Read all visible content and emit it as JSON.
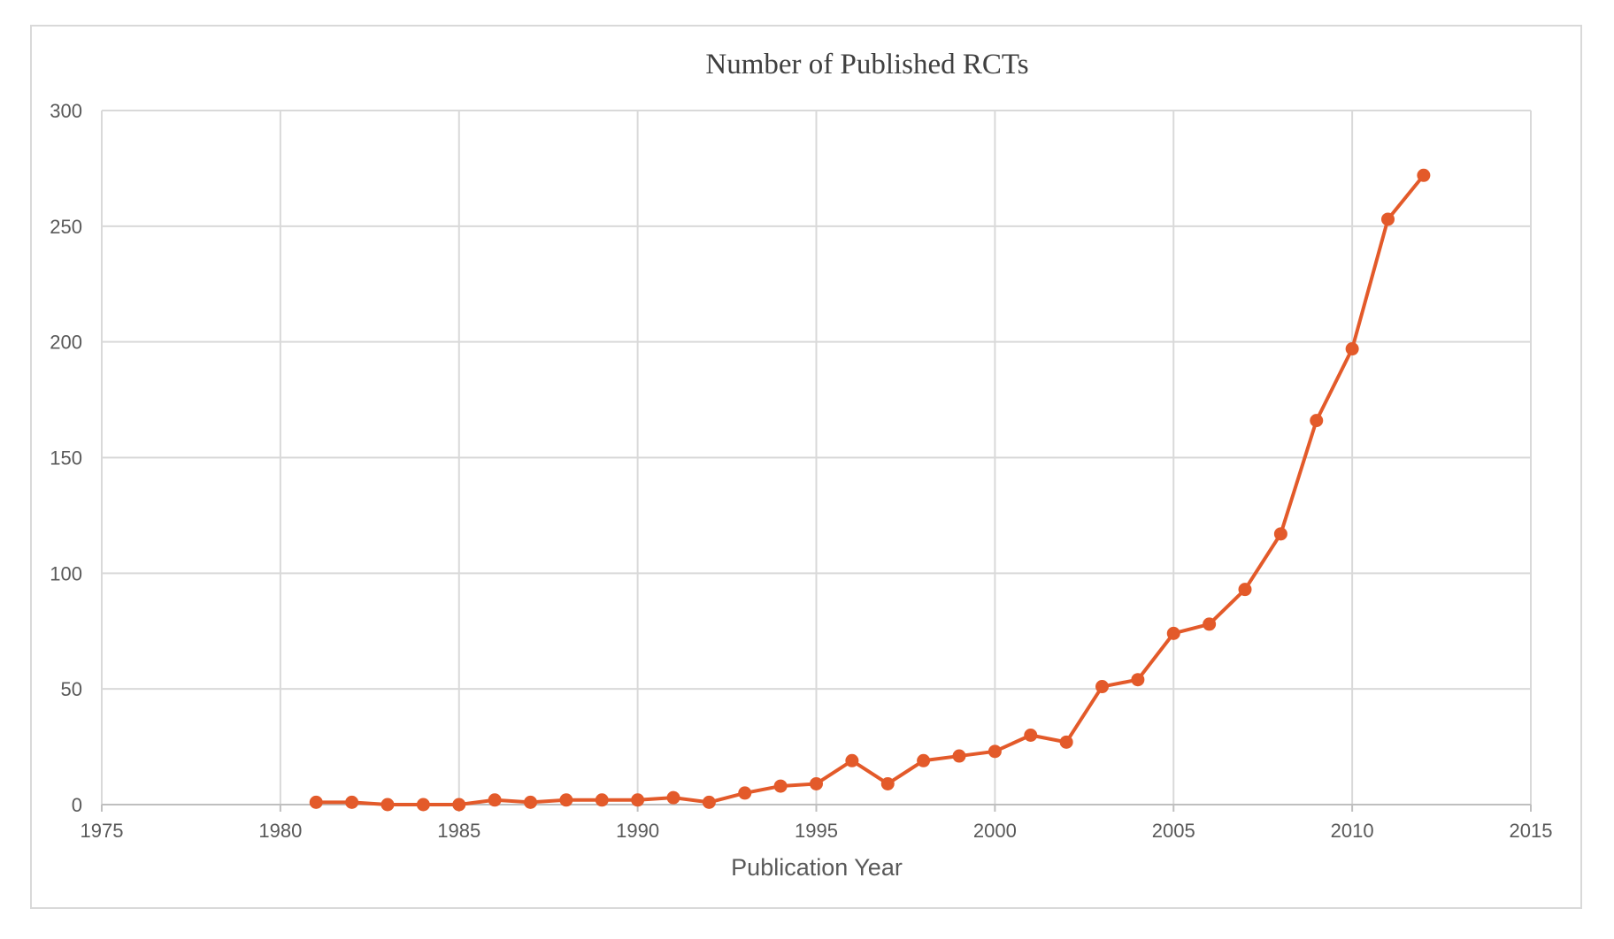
{
  "chart_data": {
    "type": "line",
    "title": "Number of Published RCTs",
    "xlabel": "Publication Year",
    "ylabel": "",
    "xlim": [
      1975,
      2015
    ],
    "ylim": [
      0,
      300
    ],
    "x_ticks": [
      1975,
      1980,
      1985,
      1990,
      1995,
      2000,
      2005,
      2010,
      2015
    ],
    "y_ticks": [
      0,
      50,
      100,
      150,
      200,
      250,
      300
    ],
    "grid": true,
    "legend": "none",
    "color": "#E35A2A",
    "series": [
      {
        "x": [
          1981,
          1982,
          1983,
          1984,
          1985,
          1986,
          1987,
          1988,
          1989,
          1990,
          1991,
          1992,
          1993,
          1994,
          1995,
          1996,
          1997,
          1998,
          1999,
          2000,
          2001,
          2002,
          2003,
          2004,
          2005,
          2006,
          2007,
          2008,
          2009,
          2010,
          2011,
          2012
        ],
        "y": [
          1,
          1,
          0,
          0,
          0,
          2,
          1,
          2,
          2,
          2,
          3,
          1,
          5,
          8,
          9,
          19,
          9,
          19,
          21,
          23,
          30,
          27,
          51,
          54,
          74,
          78,
          93,
          117,
          166,
          197,
          253,
          272
        ]
      }
    ]
  }
}
